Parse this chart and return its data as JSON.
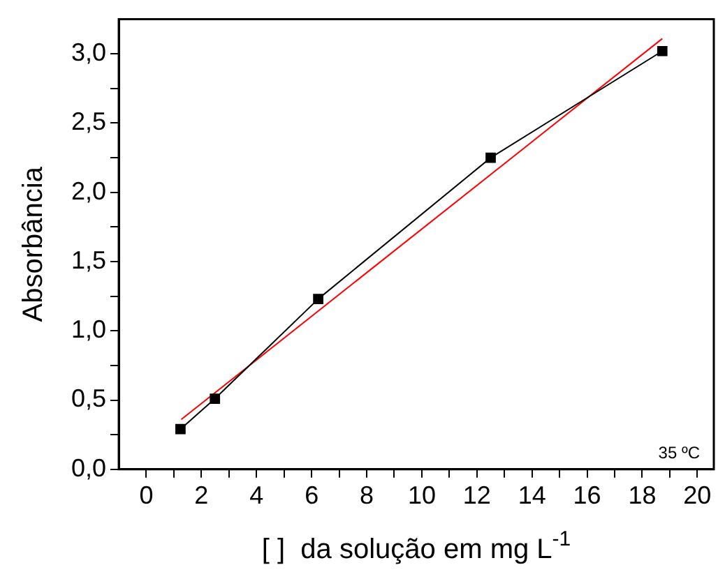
{
  "chart_data": {
    "type": "line",
    "xlabel": "[ ]  da solução em mg L$^{-1}$",
    "ylabel": "Absorbância",
    "xlim": [
      -1,
      20.6
    ],
    "ylim": [
      0,
      3.25
    ],
    "xticks": [
      0,
      {
        "value": 1,
        "label": null
      },
      2,
      {
        "value": 3,
        "label": null
      },
      4,
      {
        "value": 5,
        "label": null
      },
      6,
      {
        "value": 7,
        "label": null
      },
      8,
      {
        "value": 9,
        "label": null
      },
      10,
      {
        "value": 11,
        "label": null
      },
      12,
      {
        "value": 13,
        "label": null
      },
      14,
      {
        "value": 15,
        "label": null
      },
      16,
      {
        "value": 17,
        "label": null
      },
      18,
      {
        "value": 19,
        "label": null
      },
      20
    ],
    "yticks": [
      {
        "value": 0,
        "label": "0,0"
      },
      {
        "value": 0.25,
        "label": null
      },
      {
        "value": 0.5,
        "label": "0,5"
      },
      {
        "value": 0.75,
        "label": null
      },
      {
        "value": 1,
        "label": "1,0"
      },
      {
        "value": 1.25,
        "label": null
      },
      {
        "value": 1.5,
        "label": "1,5"
      },
      {
        "value": 1.75,
        "label": null
      },
      {
        "value": 2,
        "label": "2,0"
      },
      {
        "value": 2.25,
        "label": null
      },
      {
        "value": 2.5,
        "label": "2,5"
      },
      {
        "value": 2.75,
        "label": null
      },
      {
        "value": 3,
        "label": "3,0"
      }
    ],
    "series": [
      {
        "marker": "square",
        "color": "#000000",
        "x": [
          1.24,
          2.49,
          6.24,
          12.5,
          18.73
        ],
        "values": [
          0.29,
          0.51,
          1.23,
          2.25,
          3.02
        ]
      },
      {
        "marker": "none",
        "color": "#ff0000",
        "x": [
          1.27,
          18.73
        ],
        "values": [
          0.36,
          3.11
        ]
      }
    ],
    "annotations": [
      "35 ºC"
    ],
    "grid": false,
    "legend": false
  }
}
